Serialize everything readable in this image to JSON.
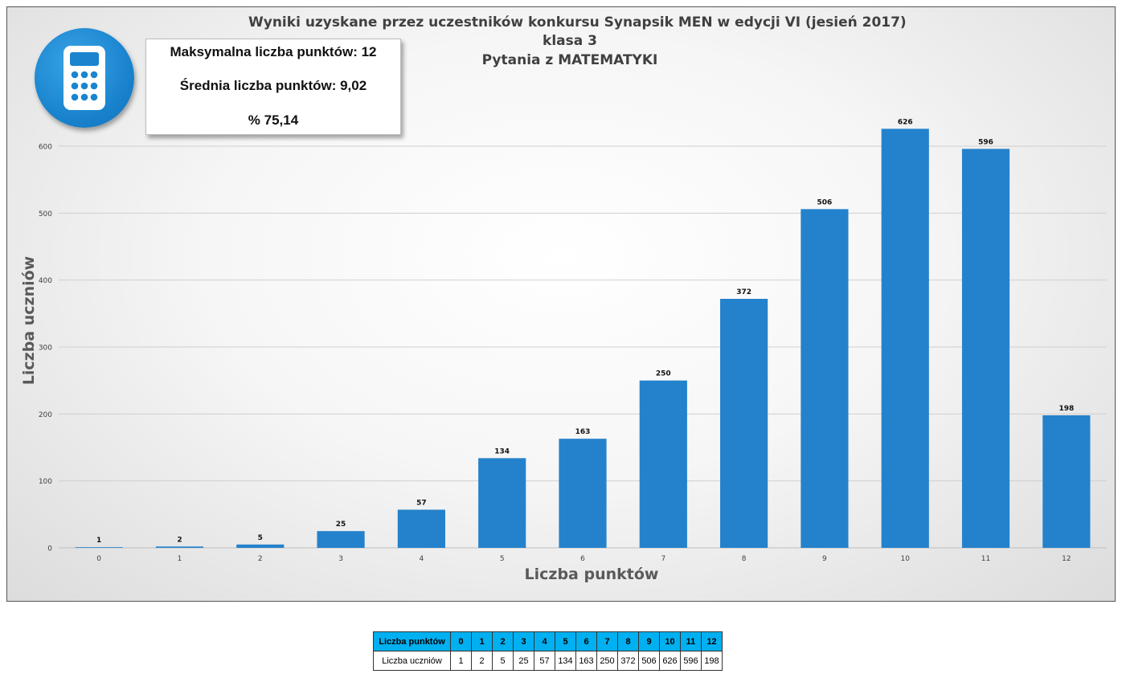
{
  "chart_data": {
    "type": "bar",
    "title": [
      "Wyniki uzyskane przez uczestników konkursu Synapsik MEN w edycji VI (jesień 2017)",
      "klasa 3",
      "Pytania z MATEMATYKI"
    ],
    "xlabel": "Liczba punktów",
    "ylabel": "Liczba uczniów",
    "categories": [
      "0",
      "1",
      "2",
      "3",
      "4",
      "5",
      "6",
      "7",
      "8",
      "9",
      "10",
      "11",
      "12"
    ],
    "values": [
      1,
      2,
      5,
      25,
      57,
      134,
      163,
      250,
      372,
      506,
      626,
      596,
      198
    ],
    "ylim": [
      0,
      600
    ],
    "yticks": [
      0,
      100,
      200,
      300,
      400,
      500,
      600
    ],
    "grid": true,
    "data_labels": true,
    "bar_color": "#2482cc"
  },
  "stats": {
    "max_points": "Maksymalna liczba punktów: 12",
    "average": "Średnia liczba punktów: 9,02",
    "percent": "% 75,14"
  },
  "badge": {
    "icon": "calculator-icon",
    "color": "#1a84cf"
  },
  "table": {
    "row1_label": "Liczba punktów",
    "row2_label": "Liczba uczniów",
    "header_color": "#00b0f0"
  }
}
